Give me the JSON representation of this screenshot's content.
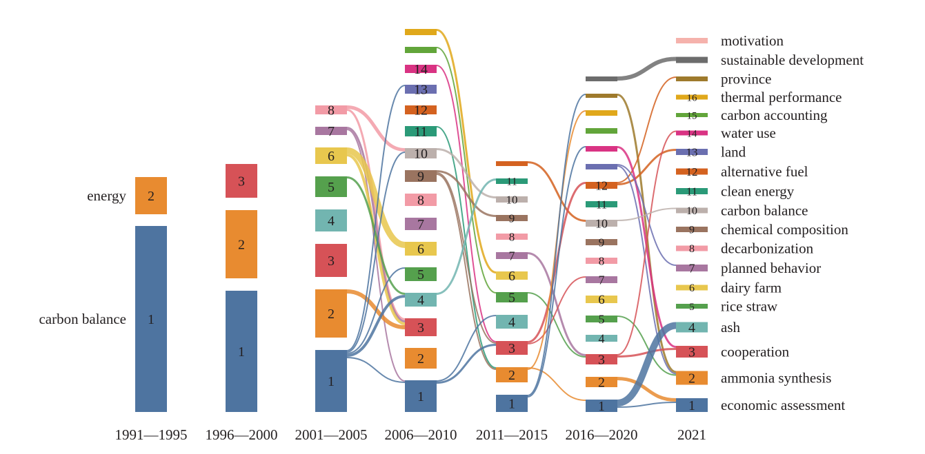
{
  "chart_data": {
    "type": "sankey",
    "title": "",
    "columns": [
      {
        "label": "1991—1995",
        "nodes": [
          {
            "id": 1,
            "value": 270,
            "label": "1"
          },
          {
            "id": 2,
            "value": 54,
            "label": "2"
          }
        ]
      },
      {
        "label": "1996—2000",
        "nodes": [
          {
            "id": 1,
            "value": 176,
            "label": "1"
          },
          {
            "id": 2,
            "value": 99,
            "label": "2"
          },
          {
            "id": 3,
            "value": 49,
            "label": "3"
          }
        ]
      },
      {
        "label": "2001—2005",
        "nodes": [
          {
            "id": 1,
            "value": 90,
            "label": "1"
          },
          {
            "id": 2,
            "value": 70,
            "label": "2"
          },
          {
            "id": 3,
            "value": 48,
            "label": "3"
          },
          {
            "id": 4,
            "value": 32,
            "label": "4"
          },
          {
            "id": 5,
            "value": 30,
            "label": "5"
          },
          {
            "id": 6,
            "value": 24,
            "label": "6"
          },
          {
            "id": 7,
            "value": 12,
            "label": "7"
          },
          {
            "id": 8,
            "value": 13,
            "label": "8"
          }
        ]
      },
      {
        "label": "2006—2010",
        "nodes": [
          {
            "id": 1,
            "value": 46,
            "label": "1"
          },
          {
            "id": 2,
            "value": 30,
            "label": "2"
          },
          {
            "id": 3,
            "value": 26,
            "label": "3"
          },
          {
            "id": 4,
            "value": 20,
            "label": "4"
          },
          {
            "id": 5,
            "value": 20,
            "label": "5"
          },
          {
            "id": 6,
            "value": 20,
            "label": "6"
          },
          {
            "id": 7,
            "value": 18,
            "label": "7"
          },
          {
            "id": 8,
            "value": 18,
            "label": "8"
          },
          {
            "id": 9,
            "value": 17,
            "label": "9"
          },
          {
            "id": 10,
            "value": 15,
            "label": "10"
          },
          {
            "id": 11,
            "value": 15,
            "label": "11"
          },
          {
            "id": 12,
            "value": 13,
            "label": "12"
          },
          {
            "id": 13,
            "value": 13,
            "label": "13"
          },
          {
            "id": 14,
            "value": 12,
            "label": "14"
          },
          {
            "id": 15,
            "value": 9
          },
          {
            "id": 16,
            "value": 9
          }
        ]
      },
      {
        "label": "2011—2015",
        "nodes": [
          {
            "id": 1,
            "value": 25,
            "label": "1"
          },
          {
            "id": 2,
            "value": 22,
            "label": "2"
          },
          {
            "id": 3,
            "value": 20,
            "label": "3"
          },
          {
            "id": 4,
            "value": 20,
            "label": "4"
          },
          {
            "id": 5,
            "value": 15,
            "label": "5"
          },
          {
            "id": 6,
            "value": 12,
            "label": "6"
          },
          {
            "id": 7,
            "value": 10,
            "label": "7"
          },
          {
            "id": 8,
            "value": 9,
            "label": "8"
          },
          {
            "id": 9,
            "value": 9,
            "label": "9"
          },
          {
            "id": 10,
            "value": 9,
            "label": "10"
          },
          {
            "id": 11,
            "value": 8,
            "label": "11"
          },
          {
            "id": 12,
            "value": 7
          }
        ]
      },
      {
        "label": "2016—2020",
        "nodes": [
          {
            "id": 1,
            "value": 18,
            "label": "1"
          },
          {
            "id": 2,
            "value": 15,
            "label": "2"
          },
          {
            "id": 3,
            "value": 15,
            "label": "3"
          },
          {
            "id": 4,
            "value": 10,
            "label": "4"
          },
          {
            "id": 5,
            "value": 10,
            "label": "5"
          },
          {
            "id": 6,
            "value": 11,
            "label": "6"
          },
          {
            "id": 7,
            "value": 10,
            "label": "7"
          },
          {
            "id": 8,
            "value": 9,
            "label": "8"
          },
          {
            "id": 9,
            "value": 9,
            "label": "9"
          },
          {
            "id": 10,
            "value": 10,
            "label": "10"
          },
          {
            "id": 11,
            "value": 9,
            "label": "11"
          },
          {
            "id": 12,
            "value": 10,
            "label": "12"
          },
          {
            "id": 13,
            "value": 8
          },
          {
            "id": 14,
            "value": 8
          },
          {
            "id": 15,
            "value": 8
          },
          {
            "id": 16,
            "value": 8
          },
          {
            "id": 17,
            "value": 6
          },
          {
            "id": 18,
            "value": 7
          }
        ]
      },
      {
        "label": "2021",
        "nodes": [
          {
            "id": 1,
            "value": 20,
            "label": "1"
          },
          {
            "id": 2,
            "value": 20,
            "label": "2"
          },
          {
            "id": 3,
            "value": 17,
            "label": "3"
          },
          {
            "id": 4,
            "value": 15,
            "label": "4"
          },
          {
            "id": 5,
            "value": 7,
            "label": "5"
          },
          {
            "id": 6,
            "value": 8,
            "label": "6"
          },
          {
            "id": 7,
            "value": 10,
            "label": "7"
          },
          {
            "id": 8,
            "value": 8,
            "label": "8"
          },
          {
            "id": 9,
            "value": 8,
            "label": "9"
          },
          {
            "id": 10,
            "value": 8,
            "label": "10"
          },
          {
            "id": 11,
            "value": 9,
            "label": "11"
          },
          {
            "id": 12,
            "value": 9,
            "label": "12"
          },
          {
            "id": 13,
            "value": 9,
            "label": "13"
          },
          {
            "id": 14,
            "value": 7,
            "label": "14"
          },
          {
            "id": 15,
            "value": 6,
            "label": "15"
          },
          {
            "id": 16,
            "value": 7,
            "label": "16"
          },
          {
            "id": 17,
            "value": 7
          },
          {
            "id": 18,
            "value": 9
          },
          {
            "id": 19,
            "value": 8
          }
        ]
      }
    ],
    "links": [
      {
        "col": 2,
        "source": 8,
        "target": 10,
        "value": 5
      },
      {
        "col": 2,
        "source": 8,
        "target": 3,
        "value": 3
      },
      {
        "col": 2,
        "source": 7,
        "target": 3,
        "value": 3
      },
      {
        "col": 2,
        "source": 7,
        "target": 1,
        "value": 2
      },
      {
        "col": 2,
        "source": 6,
        "target": 6,
        "value": 9
      },
      {
        "col": 2,
        "source": 6,
        "target": 3,
        "value": 4
      },
      {
        "col": 2,
        "source": 5,
        "target": 4,
        "value": 3
      },
      {
        "col": 2,
        "source": 2,
        "target": 3,
        "value": 6
      },
      {
        "col": 2,
        "source": 1,
        "target": 13,
        "value": 2
      },
      {
        "col": 2,
        "source": 1,
        "target": 10,
        "value": 2
      },
      {
        "col": 2,
        "source": 1,
        "target": 5,
        "value": 2
      },
      {
        "col": 2,
        "source": 1,
        "target": 4,
        "value": 4
      },
      {
        "col": 2,
        "source": 1,
        "target": 1,
        "value": 2
      },
      {
        "col": 3,
        "source": 16,
        "target": 6,
        "value": 3
      },
      {
        "col": 3,
        "source": 15,
        "target": 5,
        "value": 2
      },
      {
        "col": 3,
        "source": 14,
        "target": 3,
        "value": 2
      },
      {
        "col": 3,
        "source": 11,
        "target": 2,
        "value": 2
      },
      {
        "col": 3,
        "source": 10,
        "target": 10,
        "value": 3
      },
      {
        "col": 3,
        "source": 9,
        "target": 9,
        "value": 3
      },
      {
        "col": 3,
        "source": 9,
        "target": 3,
        "value": 2
      },
      {
        "col": 3,
        "source": 9,
        "target": 2,
        "value": 2
      },
      {
        "col": 3,
        "source": 4,
        "target": 11,
        "value": 3
      },
      {
        "col": 3,
        "source": 1,
        "target": 4,
        "value": 2
      },
      {
        "col": 3,
        "source": 1,
        "target": 3,
        "value": 3
      },
      {
        "col": 4,
        "source": 12,
        "target": 10,
        "value": 3
      },
      {
        "col": 4,
        "source": 7,
        "target": 3,
        "value": 3
      },
      {
        "col": 4,
        "source": 5,
        "target": 3,
        "value": 2
      },
      {
        "col": 4,
        "source": 3,
        "target": 12,
        "value": 3
      },
      {
        "col": 4,
        "source": 3,
        "target": 7,
        "value": 2
      },
      {
        "col": 4,
        "source": 2,
        "target": 1,
        "value": 2
      },
      {
        "col": 4,
        "source": 2,
        "target": 16,
        "value": 2
      },
      {
        "col": 4,
        "source": 1,
        "target": 17,
        "value": 2
      },
      {
        "col": 4,
        "source": 1,
        "target": 14,
        "value": 2
      },
      {
        "col": 5,
        "source": 18,
        "target": 18,
        "value": 6
      },
      {
        "col": 5,
        "source": 17,
        "target": 2,
        "value": 3
      },
      {
        "col": 5,
        "source": 12,
        "target": 17,
        "value": 2
      },
      {
        "col": 5,
        "source": 12,
        "target": 13,
        "value": 3
      },
      {
        "col": 5,
        "source": 14,
        "target": 3,
        "value": 3
      },
      {
        "col": 5,
        "source": 13,
        "target": 7,
        "value": 2
      },
      {
        "col": 5,
        "source": 13,
        "target": 2,
        "value": 2
      },
      {
        "col": 5,
        "source": 5,
        "target": 2,
        "value": 2
      },
      {
        "col": 5,
        "source": 3,
        "target": 14,
        "value": 2
      },
      {
        "col": 5,
        "source": 3,
        "target": 3,
        "value": 3
      },
      {
        "col": 5,
        "source": 10,
        "target": 10,
        "value": 2
      },
      {
        "col": 5,
        "source": 2,
        "target": 1,
        "value": 5
      },
      {
        "col": 5,
        "source": 1,
        "target": 4,
        "value": 10
      },
      {
        "col": 5,
        "source": 1,
        "target": 1,
        "value": 2
      }
    ],
    "side_labels": [
      {
        "node": 2,
        "text": "energy"
      },
      {
        "node": 1,
        "text": "carbon balance"
      }
    ],
    "legend": [
      {
        "id": 19,
        "name": "motivation"
      },
      {
        "id": 18,
        "name": "sustainable development"
      },
      {
        "id": 17,
        "name": "province"
      },
      {
        "id": 16,
        "name": "thermal performance"
      },
      {
        "id": 15,
        "name": "carbon accounting"
      },
      {
        "id": 14,
        "name": "water use"
      },
      {
        "id": 13,
        "name": "land"
      },
      {
        "id": 12,
        "name": "alternative fuel"
      },
      {
        "id": 11,
        "name": "clean energy"
      },
      {
        "id": 10,
        "name": "carbon balance"
      },
      {
        "id": 9,
        "name": "chemical composition"
      },
      {
        "id": 8,
        "name": "decarbonization"
      },
      {
        "id": 7,
        "name": "planned behavior"
      },
      {
        "id": 6,
        "name": "dairy farm"
      },
      {
        "id": 5,
        "name": "rice straw"
      },
      {
        "id": 4,
        "name": "ash"
      },
      {
        "id": 3,
        "name": "cooperation"
      },
      {
        "id": 2,
        "name": "ammonia synthesis"
      },
      {
        "id": 1,
        "name": "economic assessment"
      }
    ],
    "colors": {
      "1": "#4e74a0",
      "2": "#e88b30",
      "3": "#d65257",
      "4": "#72b5b0",
      "5": "#55a04d",
      "6": "#e8c74e",
      "7": "#a877a0",
      "8": "#f29ba6",
      "9": "#9a7460",
      "10": "#bcb0ac",
      "11": "#2b9a78",
      "12": "#d46220",
      "13": "#6b6fb0",
      "14": "#d93383",
      "15": "#62a53a",
      "16": "#e0a81b",
      "17": "#9e7a2c",
      "18": "#6c6c6c",
      "19": "#f5b2ac"
    }
  }
}
